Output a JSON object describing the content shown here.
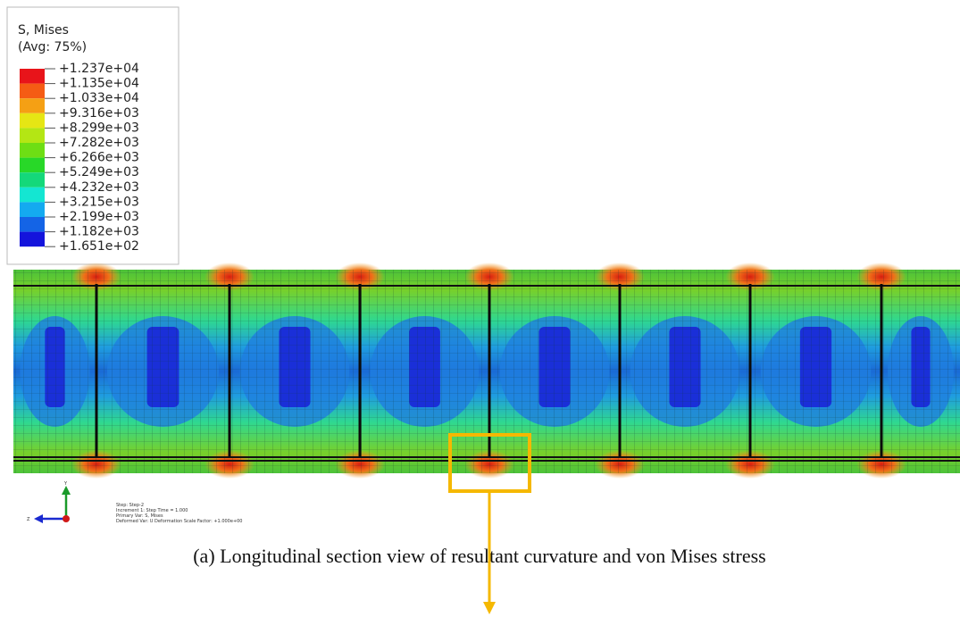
{
  "legend": {
    "title": "S, Mises",
    "subtitle": "(Avg: 75%)",
    "labels": [
      "+1.237e+04",
      "+1.135e+04",
      "+1.033e+04",
      "+9.316e+03",
      "+8.299e+03",
      "+7.282e+03",
      "+6.266e+03",
      "+5.249e+03",
      "+4.232e+03",
      "+3.215e+03",
      "+2.199e+03",
      "+1.182e+03",
      "+1.651e+02"
    ]
  },
  "triad": {
    "y": "Y",
    "z": "Z"
  },
  "step_info": [
    "Step: Step-2",
    "Increment    1: Step Time =    1.000",
    "Primary Var: S, Mises",
    "Deformed Var: U   Deformation Scale Factor: +1.000e+00"
  ],
  "caption": "(a) Longitudinal section view of resultant curvature and von Mises stress"
}
